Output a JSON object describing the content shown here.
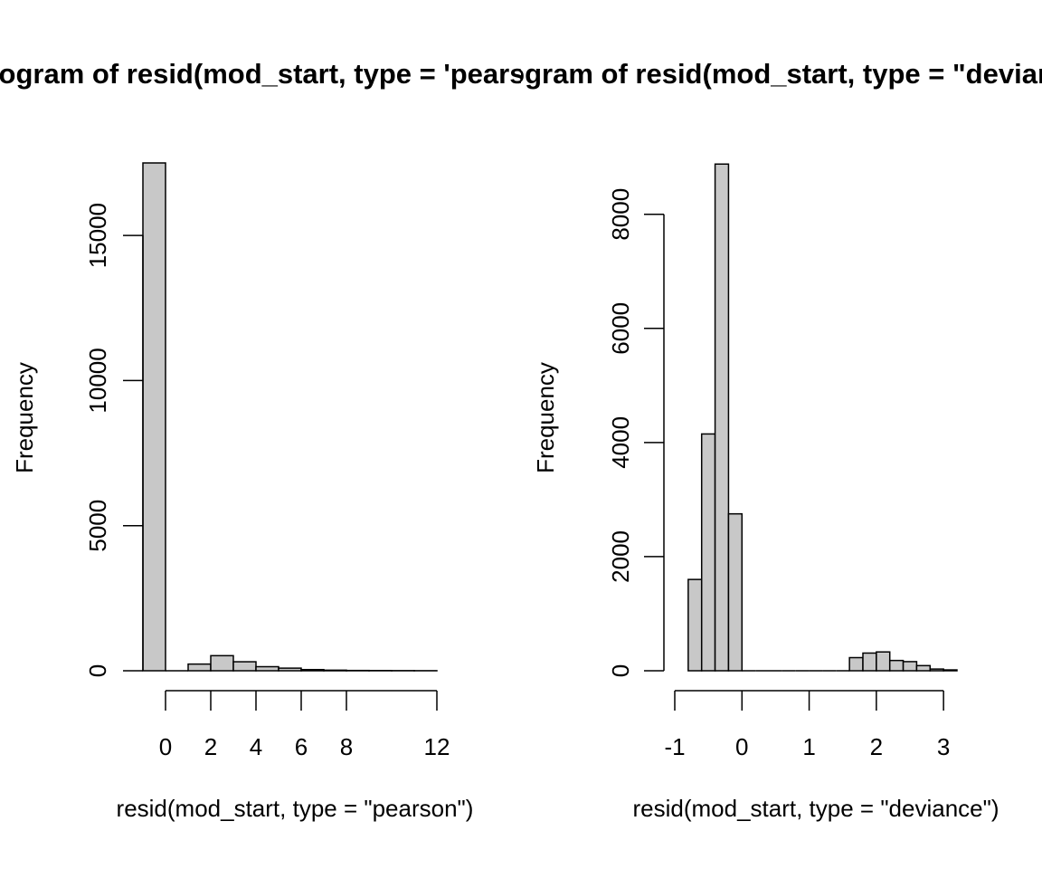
{
  "colors": {
    "bar_fill": "#c8c8c8",
    "bar_stroke": "#000000",
    "background": "#ffffff"
  },
  "chart_data": [
    {
      "type": "bar",
      "title": "Histogram of resid(mod_start, type = 'pearson')",
      "xlabel": "resid(mod_start, type = \"pearson\")",
      "ylabel": "Frequency",
      "xlim": [
        -1.0,
        12.0
      ],
      "ylim": [
        0,
        17500
      ],
      "xticks": [
        0,
        2,
        4,
        6,
        8,
        12
      ],
      "yticks": [
        0,
        5000,
        10000,
        15000
      ],
      "bin_edges": [
        -1,
        0,
        1,
        2,
        3,
        4,
        5,
        6,
        7,
        8,
        9,
        10,
        11,
        12
      ],
      "values": [
        17500,
        0,
        230,
        520,
        310,
        140,
        90,
        40,
        20,
        10,
        8,
        5,
        3
      ]
    },
    {
      "type": "bar",
      "title": "Histogram of resid(mod_start, type = \"deviance\")",
      "xlabel": "resid(mod_start, type = \"deviance\")",
      "ylabel": "Frequency",
      "xlim": [
        -1.0,
        3.2
      ],
      "ylim": [
        0,
        8900
      ],
      "xticks": [
        -1,
        0,
        1,
        2,
        3
      ],
      "yticks": [
        0,
        2000,
        4000,
        6000,
        8000
      ],
      "bin_edges": [
        -0.8,
        -0.6,
        -0.4,
        -0.2,
        0.0,
        0.2,
        0.4,
        0.6,
        0.8,
        1.0,
        1.2,
        1.4,
        1.6,
        1.8,
        2.0,
        2.2,
        2.4,
        2.6,
        2.8,
        3.0,
        3.2
      ],
      "values": [
        1600,
        4150,
        8880,
        2750,
        0,
        0,
        0,
        0,
        0,
        0,
        0,
        0,
        230,
        310,
        330,
        180,
        160,
        90,
        30,
        15
      ]
    }
  ]
}
